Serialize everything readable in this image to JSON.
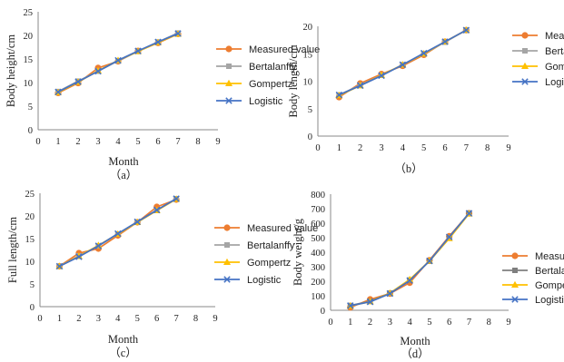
{
  "chart_data": [
    {
      "type": "line",
      "caption": "（a）",
      "xlabel": "Month",
      "ylabel": "Body height/cm",
      "xlim": [
        0,
        9
      ],
      "ylim": [
        0,
        25
      ],
      "x_ticks": [
        "0",
        "1",
        "2",
        "3",
        "4",
        "5",
        "6",
        "7",
        "8",
        "9"
      ],
      "y_ticks": [
        "0",
        "5",
        "10",
        "15",
        "20",
        "25"
      ],
      "x": [
        1,
        2,
        3,
        4,
        5,
        6,
        7
      ],
      "series": [
        {
          "name": "Measured value",
          "color": "#ed7d31",
          "marker": "circle",
          "values": [
            7.8,
            9.9,
            13.1,
            14.5,
            16.7,
            18.4,
            20.3
          ]
        },
        {
          "name": "Bertalanffy",
          "color": "#a5a5a5",
          "marker": "square",
          "values": [
            8.1,
            10.3,
            12.4,
            14.6,
            16.6,
            18.6,
            20.5
          ]
        },
        {
          "name": "Gompertz",
          "color": "#ffc000",
          "marker": "triangle",
          "values": [
            7.9,
            10.1,
            12.5,
            14.7,
            16.6,
            18.5,
            20.3
          ]
        },
        {
          "name": "Logistic",
          "color": "#4472c4",
          "marker": "x",
          "values": [
            8.0,
            10.2,
            12.4,
            14.7,
            16.7,
            18.6,
            20.4
          ]
        }
      ],
      "legend": "right"
    },
    {
      "type": "line",
      "caption": "（b）",
      "xlabel": "",
      "ylabel": "Body length/cm",
      "xlim": [
        0,
        9
      ],
      "ylim": [
        0,
        20
      ],
      "x_ticks": [
        "0",
        "1",
        "2",
        "3",
        "4",
        "5",
        "6",
        "7",
        "8",
        "9"
      ],
      "y_ticks": [
        "0",
        "5",
        "10",
        "15",
        "20"
      ],
      "x": [
        1,
        2,
        3,
        4,
        5,
        6,
        7
      ],
      "series": [
        {
          "name": "Measured value",
          "color": "#ed7d31",
          "marker": "circle",
          "values": [
            7.1,
            9.6,
            11.3,
            12.8,
            14.8,
            17.2,
            19.3
          ]
        },
        {
          "name": "Bertalanffy",
          "color": "#a5a5a5",
          "marker": "square",
          "values": [
            7.5,
            9.3,
            11.1,
            13.0,
            15.0,
            17.1,
            19.3
          ]
        },
        {
          "name": "Gompertz",
          "color": "#ffc000",
          "marker": "triangle",
          "values": [
            7.4,
            9.2,
            11.1,
            13.0,
            15.0,
            17.2,
            19.3
          ]
        },
        {
          "name": "Logistic",
          "color": "#4472c4",
          "marker": "x",
          "values": [
            7.5,
            9.2,
            11.0,
            13.0,
            15.1,
            17.2,
            19.3
          ]
        }
      ],
      "legend": "right"
    },
    {
      "type": "line",
      "caption": "（c）",
      "xlabel": "Month",
      "ylabel": "Full length/cm",
      "xlim": [
        0,
        9
      ],
      "ylim": [
        0,
        25
      ],
      "x_ticks": [
        "0",
        "1",
        "2",
        "3",
        "4",
        "5",
        "6",
        "7",
        "8",
        "9"
      ],
      "y_ticks": [
        "0",
        "5",
        "10",
        "15",
        "20",
        "25"
      ],
      "x": [
        1,
        2,
        3,
        4,
        5,
        6,
        7
      ],
      "series": [
        {
          "name": "Measured value",
          "color": "#ed7d31",
          "marker": "circle",
          "values": [
            8.9,
            11.8,
            12.8,
            15.7,
            18.6,
            22.0,
            23.6
          ]
        },
        {
          "name": "Bertalanffy",
          "color": "#a5a5a5",
          "marker": "square",
          "values": [
            8.9,
            11.2,
            13.4,
            16.0,
            18.6,
            21.2,
            23.8
          ]
        },
        {
          "name": "Gompertz",
          "color": "#ffc000",
          "marker": "triangle",
          "values": [
            8.9,
            11.1,
            13.5,
            16.0,
            18.6,
            21.2,
            23.7
          ]
        },
        {
          "name": "Logistic",
          "color": "#4472c4",
          "marker": "x",
          "values": [
            8.9,
            11.0,
            13.4,
            16.1,
            18.7,
            21.3,
            23.8
          ]
        }
      ],
      "legend": "right"
    },
    {
      "type": "line",
      "caption": "（d）",
      "xlabel": "Month",
      "ylabel": "Body weight/g",
      "xlim": [
        0,
        9
      ],
      "ylim": [
        0,
        800
      ],
      "x_ticks": [
        "0",
        "1",
        "2",
        "3",
        "4",
        "5",
        "6",
        "7",
        "8",
        "9"
      ],
      "y_ticks": [
        "0",
        "100",
        "200",
        "300",
        "400",
        "500",
        "600",
        "700",
        "800"
      ],
      "x": [
        1,
        2,
        3,
        4,
        5,
        6,
        7
      ],
      "series": [
        {
          "name": "Measured value",
          "color": "#ed7d31",
          "marker": "circle",
          "values": [
            20,
            75,
            115,
            190,
            345,
            510,
            668
          ]
        },
        {
          "name": "Bertalanffy",
          "color": "#7f7f7f",
          "marker": "square",
          "values": [
            33,
            62,
            118,
            208,
            338,
            500,
            670
          ]
        },
        {
          "name": "Gompertz",
          "color": "#ffc000",
          "marker": "triangle",
          "values": [
            30,
            60,
            118,
            212,
            340,
            495,
            665
          ]
        },
        {
          "name": "Logistic",
          "color": "#4472c4",
          "marker": "x",
          "values": [
            32,
            58,
            115,
            205,
            340,
            505,
            668
          ]
        }
      ],
      "legend": "right"
    }
  ]
}
